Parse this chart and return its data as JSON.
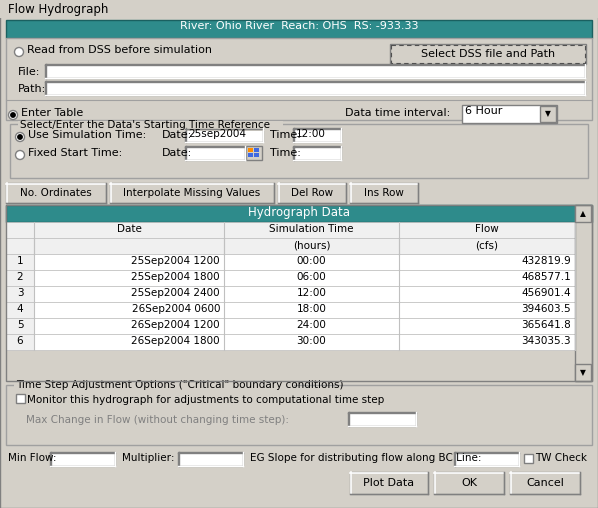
{
  "title": "Flow Hydrograph",
  "header_text": "River: Ohio River  Reach: OHS  RS: -933.33",
  "header_bg": "#2e8b8b",
  "header_fg": "#ffffff",
  "bg_color": "#d4d0c8",
  "white": "#ffffff",
  "table_header_bg": "#2e8b8b",
  "table_header_fg": "#ffffff",
  "radio1_label": "Read from DSS before simulation",
  "btn_dss": "Select DSS file and Path",
  "file_label": "File:",
  "path_label": "Path:",
  "radio2_label": "Enter Table",
  "interval_label": "Data time interval:",
  "interval_value": "6 Hour",
  "group_label": "Select/Enter the Data's Starting Time Reference",
  "radio_sim": "Use Simulation Time:",
  "date_label": "Date:",
  "date_value": "25sep2004",
  "time_label": "Time:",
  "time_value": "12:00",
  "radio_fixed": "Fixed Start Time:",
  "btn_no_ord": "No. Ordinates",
  "btn_interp": "Interpolate Missing Values",
  "btn_del": "Del Row",
  "btn_ins": "Ins Row",
  "table_title": "Hydrograph Data",
  "col1": "Date",
  "col2": "Simulation Time",
  "col3": "Flow",
  "col1_unit": "",
  "col2_unit": "(hours)",
  "col3_unit": "(cfs)",
  "rows": [
    [
      "1",
      "25Sep2004 1200",
      "00:00",
      "432819.9"
    ],
    [
      "2",
      "25Sep2004 1800",
      "06:00",
      "468577.1"
    ],
    [
      "3",
      "25Sep2004 2400",
      "12:00",
      "456901.4"
    ],
    [
      "4",
      "26Sep2004 0600",
      "18:00",
      "394603.5"
    ],
    [
      "5",
      "26Sep2004 1200",
      "24:00",
      "365641.8"
    ],
    [
      "6",
      "26Sep2004 1800",
      "30:00",
      "343035.3"
    ]
  ],
  "timestep_group": "Time Step Adjustment Options (\"Critical\" boundary conditions)",
  "cb_monitor": "Monitor this hydrograph for adjustments to computational time step",
  "max_change_label": "Max Change in Flow (without changing time step):",
  "min_flow_label": "Min Flow:",
  "multiplier_label": "Multiplier:",
  "eg_slope_label": "EG Slope for distributing flow along BC Line:",
  "tw_check_label": "TW Check",
  "btn_plot": "Plot Data",
  "btn_ok": "OK",
  "btn_cancel": "Cancel"
}
